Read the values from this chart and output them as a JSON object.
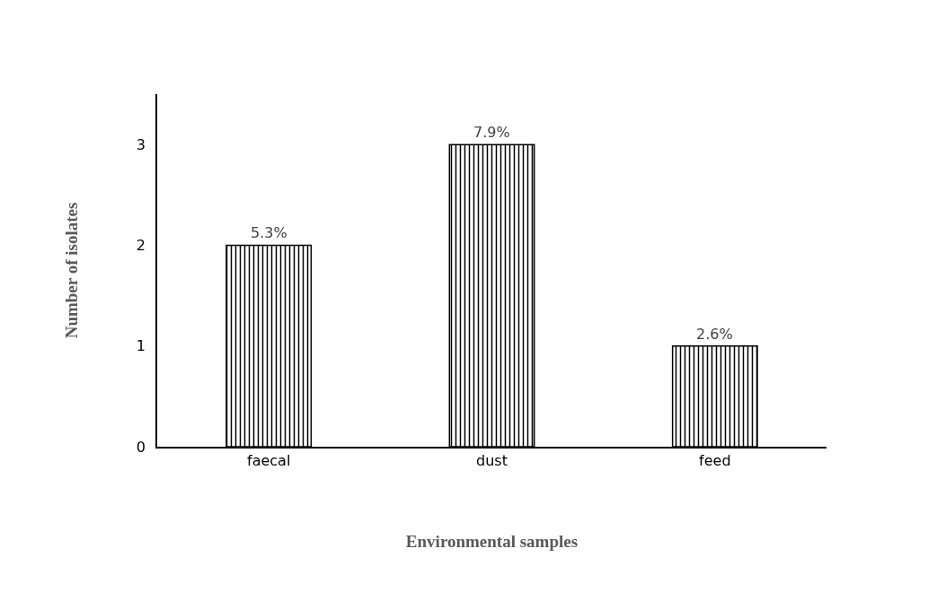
{
  "chart_data": {
    "type": "bar",
    "xlabel": "Environmental samples",
    "ylabel": "Number of isolates",
    "categories": [
      "faecal",
      "dust",
      "feed"
    ],
    "values": [
      2,
      3,
      1
    ],
    "annotations": [
      {
        "text": "5.3%",
        "x": "faecal",
        "y": 2
      },
      {
        "text": "7.9%",
        "x": "dust",
        "y": 3
      },
      {
        "text": "2.6%",
        "x": "feed",
        "y": 1
      }
    ],
    "color": "#000000",
    "ylim": [
      0,
      3.5
    ],
    "yticks": [
      0,
      1,
      2,
      3
    ],
    "grid": false
  }
}
